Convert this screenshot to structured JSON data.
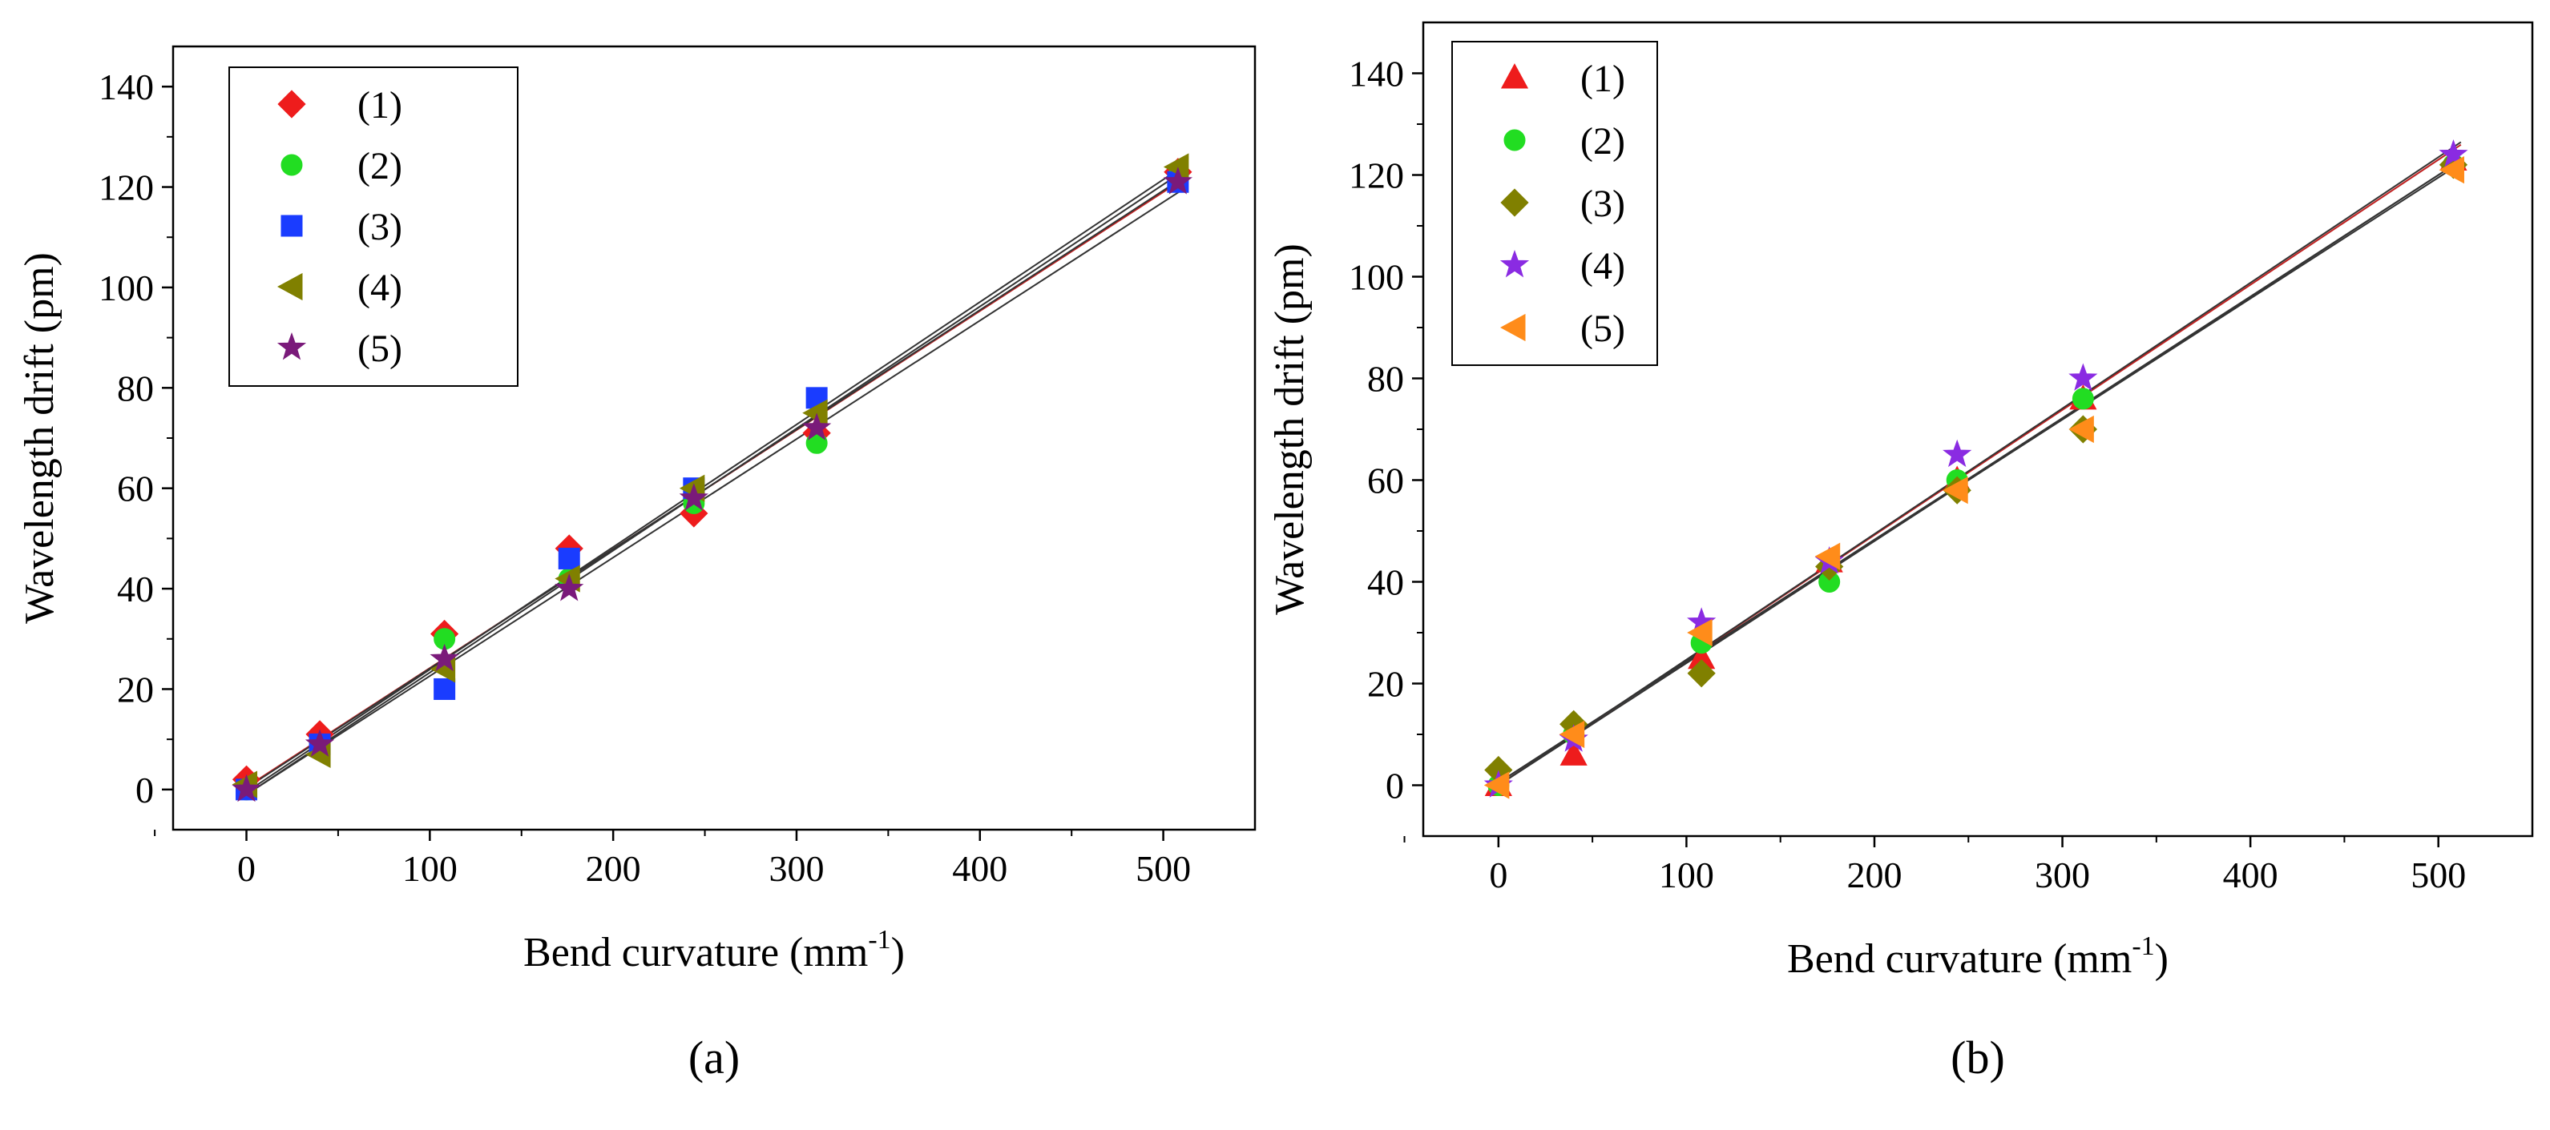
{
  "chart_data": [
    {
      "type": "scatter",
      "panel_label": "(a)",
      "xlabel": "Bend curvature (mm",
      "xlabel_sup": "-1",
      "xlabel_suffix": ")",
      "ylabel": "Wavelength drift (pm)",
      "xlim": [
        -40,
        550
      ],
      "ylim": [
        -8,
        148
      ],
      "xticks": [
        0,
        100,
        200,
        300,
        400,
        500
      ],
      "yticks": [
        0,
        20,
        40,
        60,
        80,
        100,
        120,
        140
      ],
      "legend_position": "top-left",
      "series": [
        {
          "name": "(1)",
          "marker": "diamond",
          "color": "#ee1c1c",
          "x": [
            0,
            40,
            108,
            176,
            244,
            311,
            508
          ],
          "y": [
            2,
            11,
            31,
            48,
            55,
            71,
            123
          ],
          "fit": [
            0.5,
            0.237
          ]
        },
        {
          "name": "(2)",
          "marker": "circle",
          "color": "#22dd22",
          "x": [
            0,
            40,
            108,
            176,
            244,
            311,
            508
          ],
          "y": [
            0,
            8,
            30,
            42,
            57,
            69,
            122
          ],
          "fit": [
            0.3,
            0.238
          ]
        },
        {
          "name": "(3)",
          "marker": "square",
          "color": "#1a3cff",
          "x": [
            0,
            40,
            108,
            176,
            244,
            311,
            508
          ],
          "y": [
            0,
            9,
            20,
            46,
            60,
            78,
            121
          ],
          "fit": [
            -1.0,
            0.243
          ]
        },
        {
          "name": "(4)",
          "marker": "triangle-left",
          "color": "#808000",
          "x": [
            0,
            40,
            108,
            176,
            244,
            311,
            508
          ],
          "y": [
            1,
            7,
            24,
            42,
            60,
            75,
            124
          ],
          "fit": [
            -0.5,
            0.244
          ]
        },
        {
          "name": "(5)",
          "marker": "star",
          "color": "#7a1a7a",
          "x": [
            0,
            40,
            108,
            176,
            244,
            311,
            508
          ],
          "y": [
            0,
            9,
            26,
            40,
            58,
            72,
            121
          ],
          "fit": [
            -1.0,
            0.236
          ]
        }
      ]
    },
    {
      "type": "scatter",
      "panel_label": "(b)",
      "xlabel": "Bend curvature (mm",
      "xlabel_sup": "-1",
      "xlabel_suffix": ")",
      "ylabel": "Wavelength drift (pm)",
      "xlim": [
        -40,
        550
      ],
      "ylim": [
        -10,
        150
      ],
      "xticks": [
        0,
        100,
        200,
        300,
        400,
        500
      ],
      "yticks": [
        0,
        20,
        40,
        60,
        80,
        100,
        120,
        140
      ],
      "legend_position": "top-left",
      "series": [
        {
          "name": "(1)",
          "marker": "triangle-up",
          "color": "#ee1c1c",
          "x": [
            0,
            40,
            108,
            176,
            244,
            311,
            508
          ],
          "y": [
            0,
            6,
            25,
            44,
            60,
            76,
            123
          ],
          "fit": [
            0.0,
            0.246
          ]
        },
        {
          "name": "(2)",
          "marker": "circle",
          "color": "#22dd22",
          "x": [
            0,
            40,
            108,
            176,
            244,
            311,
            508
          ],
          "y": [
            0,
            10,
            28,
            40,
            60,
            76,
            122
          ],
          "fit": [
            0.0,
            0.24
          ]
        },
        {
          "name": "(3)",
          "marker": "diamond",
          "color": "#808000",
          "x": [
            0,
            40,
            108,
            176,
            244,
            311,
            508
          ],
          "y": [
            3,
            12,
            22,
            43,
            58,
            70,
            122
          ],
          "fit": [
            0.5,
            0.239
          ]
        },
        {
          "name": "(4)",
          "marker": "star",
          "color": "#8a2be2",
          "x": [
            0,
            40,
            108,
            176,
            244,
            311,
            508
          ],
          "y": [
            0,
            9,
            32,
            44,
            65,
            80,
            124
          ],
          "fit": [
            0.0,
            0.247
          ]
        },
        {
          "name": "(5)",
          "marker": "triangle-left",
          "color": "#ff8c1a",
          "x": [
            0,
            40,
            108,
            176,
            244,
            311,
            508
          ],
          "y": [
            0,
            10,
            30,
            45,
            58,
            70,
            121
          ],
          "fit": [
            0.5,
            0.238
          ]
        }
      ]
    }
  ]
}
